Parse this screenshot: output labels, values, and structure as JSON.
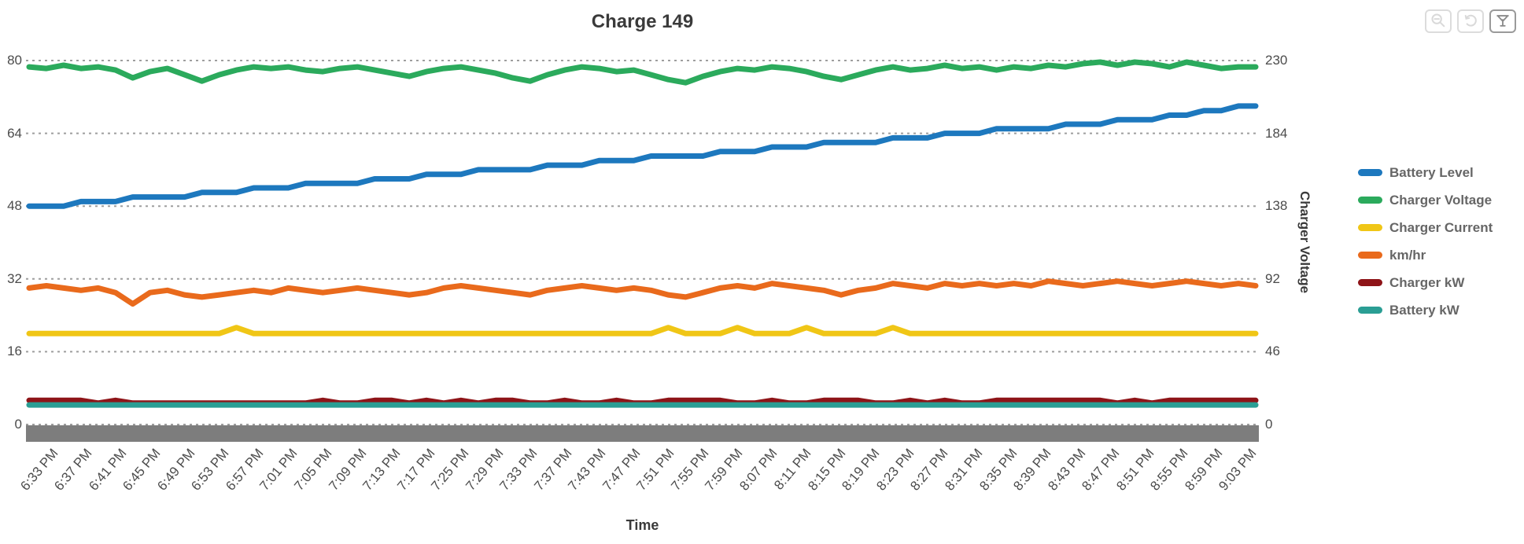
{
  "title": "Charge 149",
  "toolbar": {
    "buttons": [
      {
        "name": "zoom-out",
        "icon": "magnifier-minus-icon",
        "enabled": false
      },
      {
        "name": "reset",
        "icon": "reset-arrow-icon",
        "enabled": false
      },
      {
        "name": "filter",
        "icon": "funnel-icon",
        "enabled": true
      }
    ]
  },
  "colors": {
    "grid": "#9e9e9e",
    "axis_band": "#7d7d7d",
    "title_text": "#3a3a3a",
    "tick_text": "#4b4b4b",
    "legend_text": "#666666"
  },
  "chart_data": {
    "type": "line",
    "title": "Charge 149",
    "xlabel": "Time",
    "grid": "horizontal-dashed",
    "legend_position": "right",
    "x_tick_labels": [
      "6:33 PM",
      "6:37 PM",
      "6:41 PM",
      "6:45 PM",
      "6:49 PM",
      "6:53 PM",
      "6:57 PM",
      "7:01 PM",
      "7:05 PM",
      "7:09 PM",
      "7:13 PM",
      "7:17 PM",
      "7:25 PM",
      "7:29 PM",
      "7:33 PM",
      "7:37 PM",
      "7:43 PM",
      "7:47 PM",
      "7:51 PM",
      "7:55 PM",
      "7:59 PM",
      "8:07 PM",
      "8:11 PM",
      "8:15 PM",
      "8:19 PM",
      "8:23 PM",
      "8:27 PM",
      "8:31 PM",
      "8:35 PM",
      "8:39 PM",
      "8:43 PM",
      "8:47 PM",
      "8:51 PM",
      "8:55 PM",
      "8:59 PM",
      "9:03 PM"
    ],
    "left_axis": {
      "min": 0,
      "max": 80,
      "ticks": [
        80,
        64,
        48,
        32,
        16,
        0
      ]
    },
    "right_axis": {
      "title": "Charger Voltage",
      "min": 0,
      "max": 230,
      "ticks": [
        230,
        184,
        138,
        92,
        46,
        0
      ]
    },
    "series": [
      {
        "name": "Battery Level",
        "axis": "left",
        "color": "#1d78be",
        "values": [
          48,
          48,
          48,
          49,
          49,
          49,
          50,
          50,
          50,
          50,
          51,
          51,
          51,
          52,
          52,
          52,
          53,
          53,
          53,
          53,
          54,
          54,
          54,
          55,
          55,
          55,
          56,
          56,
          56,
          56,
          57,
          57,
          57,
          58,
          58,
          58,
          59,
          59,
          59,
          59,
          60,
          60,
          60,
          61,
          61,
          61,
          62,
          62,
          62,
          62,
          63,
          63,
          63,
          64,
          64,
          64,
          65,
          65,
          65,
          65,
          66,
          66,
          66,
          67,
          67,
          67,
          68,
          68,
          69,
          69,
          70,
          70
        ]
      },
      {
        "name": "Charger Voltage",
        "axis": "right",
        "color": "#2baa5c",
        "values": [
          226,
          225,
          227,
          225,
          226,
          224,
          219,
          223,
          225,
          221,
          217,
          221,
          224,
          226,
          225,
          226,
          224,
          223,
          225,
          226,
          224,
          222,
          220,
          223,
          225,
          226,
          224,
          222,
          219,
          217,
          221,
          224,
          226,
          225,
          223,
          224,
          221,
          218,
          216,
          220,
          223,
          225,
          224,
          226,
          225,
          223,
          220,
          218,
          221,
          224,
          226,
          224,
          225,
          227,
          225,
          226,
          224,
          226,
          225,
          227,
          226,
          228,
          229,
          227,
          229,
          228,
          226,
          229,
          227,
          225,
          226,
          226
        ]
      },
      {
        "name": "Charger Current",
        "axis": "left",
        "color": "#f0c616",
        "values": [
          20,
          20,
          20,
          20,
          20,
          20,
          20,
          20,
          20,
          20,
          20,
          20,
          21.3,
          20,
          20,
          20,
          20,
          20,
          20,
          20,
          20,
          20,
          20,
          20,
          20,
          20,
          20,
          20,
          20,
          20,
          20,
          20,
          20,
          20,
          20,
          20,
          20,
          21.3,
          20,
          20,
          20,
          21.3,
          20,
          20,
          20,
          21.3,
          20,
          20,
          20,
          20,
          21.3,
          20,
          20,
          20,
          20,
          20,
          20,
          20,
          20,
          20,
          20,
          20,
          20,
          20,
          20,
          20,
          20,
          20,
          20,
          20,
          20,
          20
        ]
      },
      {
        "name": "km/hr",
        "axis": "left",
        "color": "#e96a1c",
        "values": [
          30,
          30.5,
          30,
          29.5,
          30,
          29,
          26.5,
          29,
          29.5,
          28.5,
          28,
          28.5,
          29,
          29.5,
          29,
          30,
          29.5,
          29,
          29.5,
          30,
          29.5,
          29,
          28.5,
          29,
          30,
          30.5,
          30,
          29.5,
          29,
          28.5,
          29.5,
          30,
          30.5,
          30,
          29.5,
          30,
          29.5,
          28.5,
          28,
          29,
          30,
          30.5,
          30,
          31,
          30.5,
          30,
          29.5,
          28.5,
          29.5,
          30,
          31,
          30.5,
          30,
          31,
          30.5,
          31,
          30.5,
          31,
          30.5,
          31.5,
          31,
          30.5,
          31,
          31.5,
          31,
          30.5,
          31,
          31.5,
          31,
          30.5,
          31,
          30.5
        ]
      },
      {
        "name": "Charger kW",
        "axis": "left",
        "color": "#8e1418",
        "values": [
          5.3,
          5.3,
          5.3,
          5.3,
          4.7,
          5.3,
          4.7,
          4.7,
          4.7,
          4.7,
          4.7,
          4.7,
          4.7,
          4.7,
          4.7,
          4.7,
          4.7,
          5.3,
          4.7,
          4.7,
          5.3,
          5.3,
          4.7,
          5.3,
          4.7,
          5.3,
          4.7,
          5.3,
          5.3,
          4.7,
          4.7,
          5.3,
          4.7,
          4.7,
          5.3,
          4.7,
          4.7,
          5.3,
          5.3,
          5.3,
          5.3,
          4.7,
          4.7,
          5.3,
          4.7,
          4.7,
          5.3,
          5.3,
          5.3,
          4.7,
          4.7,
          5.3,
          4.7,
          5.3,
          4.7,
          4.7,
          5.3,
          5.3,
          5.3,
          5.3,
          5.3,
          5.3,
          5.3,
          4.7,
          5.3,
          4.7,
          5.3,
          5.3,
          5.3,
          5.3,
          5.3,
          5.3
        ]
      },
      {
        "name": "Battery kW",
        "axis": "left",
        "color": "#2a9e94",
        "values": [
          4.3,
          4.3,
          4.3,
          4.3,
          4.3,
          4.3,
          4.3,
          4.3,
          4.3,
          4.3,
          4.3,
          4.3,
          4.3,
          4.3,
          4.3,
          4.3,
          4.3,
          4.3,
          4.3,
          4.3,
          4.3,
          4.3,
          4.3,
          4.3,
          4.3,
          4.3,
          4.3,
          4.3,
          4.3,
          4.3,
          4.3,
          4.3,
          4.3,
          4.3,
          4.3,
          4.3,
          4.3,
          4.3,
          4.3,
          4.3,
          4.3,
          4.3,
          4.3,
          4.3,
          4.3,
          4.3,
          4.3,
          4.3,
          4.3,
          4.3,
          4.3,
          4.3,
          4.3,
          4.3,
          4.3,
          4.3,
          4.3,
          4.3,
          4.3,
          4.3,
          4.3,
          4.3,
          4.3,
          4.3,
          4.3,
          4.3,
          4.3,
          4.3,
          4.3,
          4.3,
          4.3,
          4.3
        ]
      }
    ]
  }
}
